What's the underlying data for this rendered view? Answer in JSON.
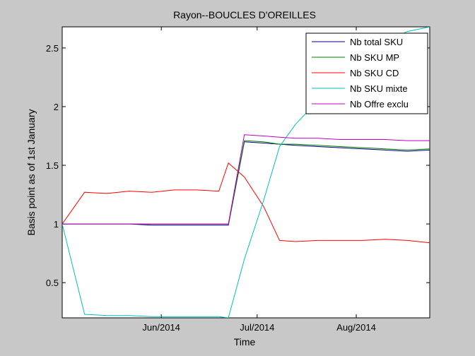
{
  "chart_data": {
    "type": "line",
    "title": "Rayon--BOUCLES D'OREILLES",
    "xlabel": "Time",
    "ylabel": "Basis point as of 1st January",
    "xlim": [
      "2014-05-01",
      "2014-08-24"
    ],
    "ylim": [
      0.2,
      2.68
    ],
    "yticks": [
      0.5,
      1,
      1.5,
      2,
      2.5
    ],
    "ytick_labels": [
      "0.5",
      "1",
      "1.5",
      "2",
      "2.5"
    ],
    "xticks": [
      "2014-06-01",
      "2014-07-01",
      "2014-08-01"
    ],
    "xtick_labels": [
      "Jun/2014",
      "Jul/2014",
      "Aug/2014"
    ],
    "grid": false,
    "legend_position": "top-right",
    "x": [
      "2014-05-01",
      "2014-05-08",
      "2014-05-15",
      "2014-05-22",
      "2014-05-29",
      "2014-06-05",
      "2014-06-12",
      "2014-06-19",
      "2014-06-22",
      "2014-06-27",
      "2014-07-03",
      "2014-07-08",
      "2014-07-13",
      "2014-07-20",
      "2014-07-27",
      "2014-08-03",
      "2014-08-10",
      "2014-08-17",
      "2014-08-24"
    ],
    "series": [
      {
        "name": "Nb total SKU",
        "color": "#00007f",
        "values": [
          1,
          1,
          1,
          1,
          0.99,
          0.99,
          0.99,
          0.99,
          0.99,
          1.7,
          1.69,
          1.68,
          1.67,
          1.66,
          1.65,
          1.64,
          1.63,
          1.62,
          1.63
        ]
      },
      {
        "name": "Nb SKU MP",
        "color": "#007f00",
        "values": [
          1,
          1,
          1,
          1,
          1,
          1,
          1,
          1,
          1,
          1.71,
          1.7,
          1.68,
          1.68,
          1.67,
          1.66,
          1.65,
          1.64,
          1.63,
          1.64
        ]
      },
      {
        "name": "Nb SKU CD",
        "color": "#ff0000",
        "values": [
          1,
          1.27,
          1.26,
          1.28,
          1.27,
          1.29,
          1.29,
          1.28,
          1.52,
          1.4,
          1.15,
          0.86,
          0.85,
          0.86,
          0.86,
          0.86,
          0.87,
          0.86,
          0.84
        ]
      },
      {
        "name": "Nb SKU mixte",
        "color": "#00bfbf",
        "values": [
          1,
          0.23,
          0.22,
          0.22,
          0.21,
          0.21,
          0.21,
          0.21,
          0.2,
          0.7,
          1.2,
          1.66,
          1.85,
          2.05,
          2.25,
          2.42,
          2.55,
          2.64,
          2.68
        ]
      },
      {
        "name": "Nb Offre exclu",
        "color": "#bf00bf",
        "values": [
          1,
          1,
          1,
          1,
          1,
          1,
          1,
          1,
          1,
          1.76,
          1.75,
          1.74,
          1.73,
          1.73,
          1.72,
          1.72,
          1.72,
          1.71,
          1.71
        ]
      }
    ]
  }
}
